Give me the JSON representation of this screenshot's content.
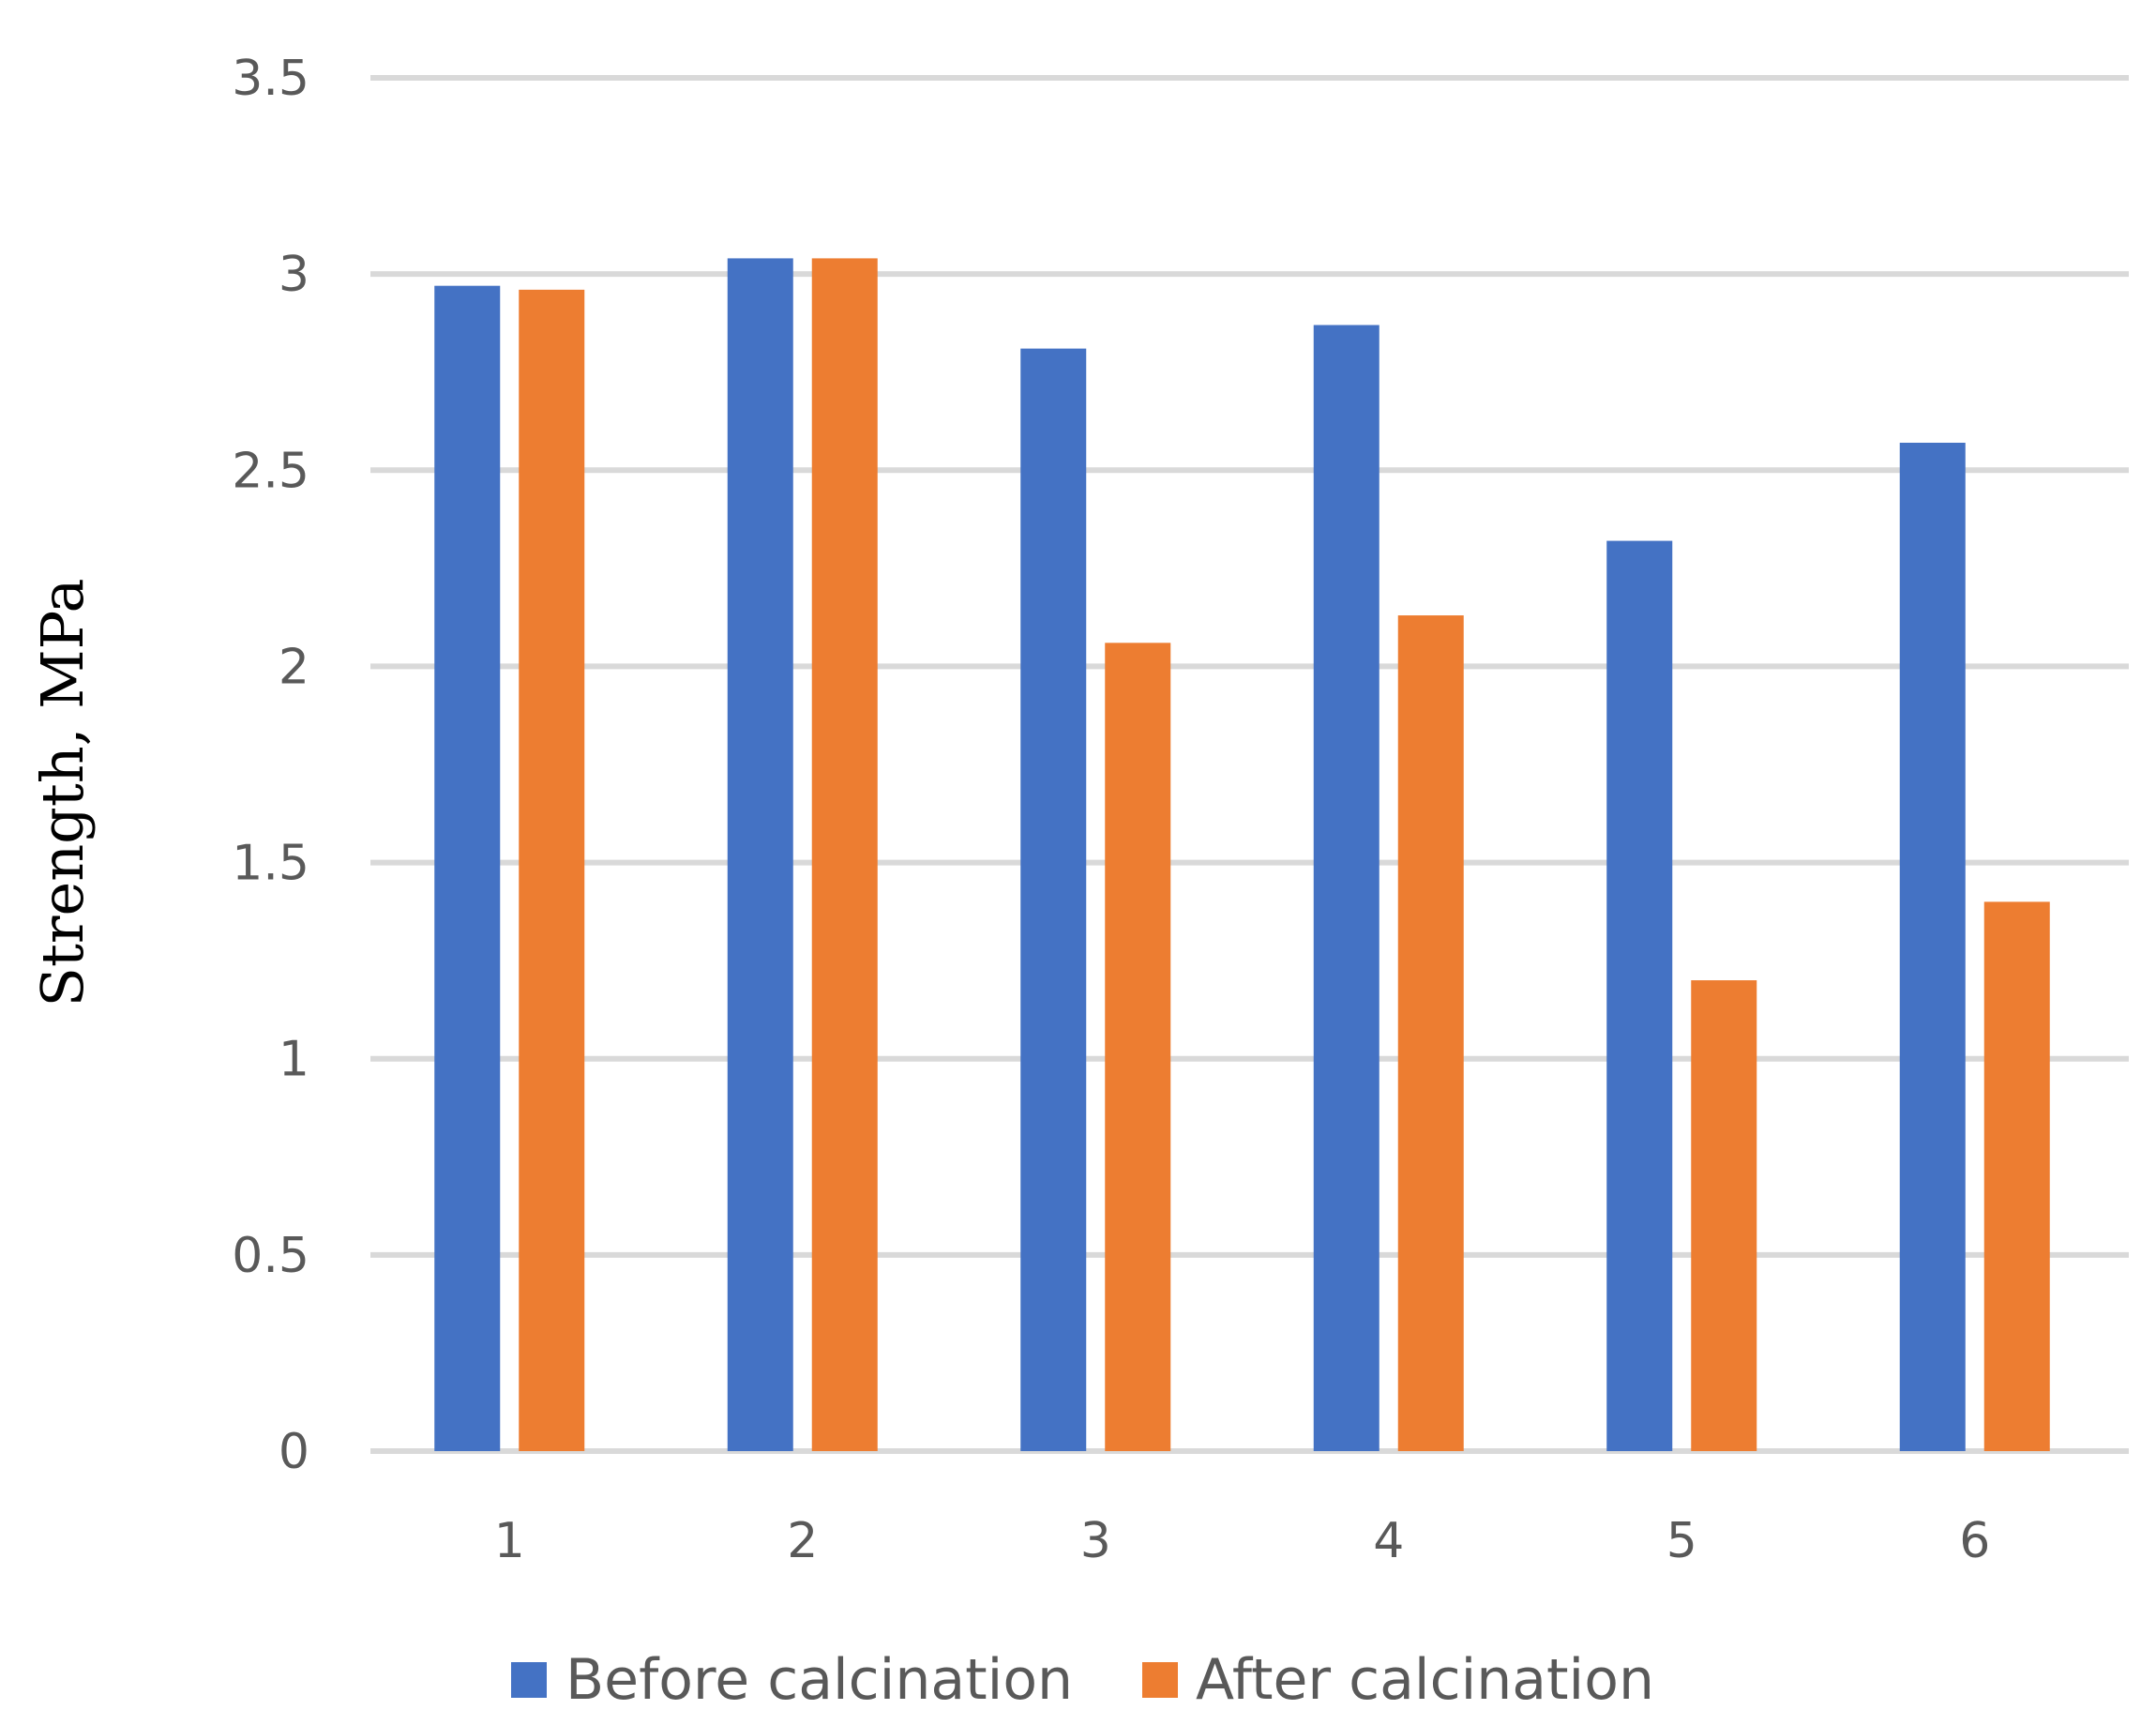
{
  "chart_data": {
    "type": "bar",
    "title": "",
    "xlabel": "",
    "ylabel": "Strength, MPa",
    "categories": [
      "1",
      "2",
      "3",
      "4",
      "5",
      "6"
    ],
    "series": [
      {
        "name": "Before calcination",
        "color": "#4472c4",
        "values": [
          2.97,
          3.04,
          2.81,
          2.87,
          2.32,
          2.57
        ]
      },
      {
        "name": "After calcination",
        "color": "#ed7d31",
        "values": [
          2.96,
          3.04,
          2.06,
          2.13,
          1.2,
          1.4
        ]
      }
    ],
    "ylim": [
      0,
      3.5
    ],
    "yticks": [
      "0",
      "0.5",
      "1",
      "1.5",
      "2",
      "2.5",
      "3",
      "3.5"
    ],
    "grid": true,
    "legend": "bottom"
  }
}
